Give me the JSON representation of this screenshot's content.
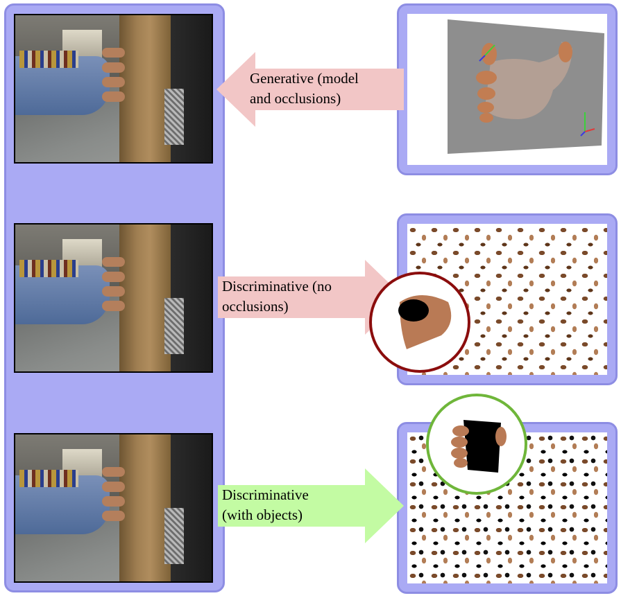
{
  "colors": {
    "panel_fill": "#aaaaf4",
    "panel_border": "#8d8de3",
    "arrow_pink": "#f2c6c6",
    "arrow_green": "#c3fba3",
    "circle_red": "#8b0d0d",
    "circle_green": "#6fb63a"
  },
  "arrows": [
    {
      "line1": "Generative (model",
      "line2": "and occlusions)",
      "direction": "left",
      "color": "pink"
    },
    {
      "line1": "Discriminative (no",
      "line2": "occlusions)",
      "direction": "right",
      "color": "pink"
    },
    {
      "line1": "Discriminative",
      "line2": "(with objects)",
      "direction": "right",
      "color": "green"
    }
  ],
  "images": {
    "left_photos": [
      "hand-behind-tube-photo",
      "hand-behind-tube-photo",
      "hand-behind-tube-photo"
    ],
    "top_right": "3d-hand-model-render",
    "middle_right": "synthetic-hand-dataset",
    "bottom_right": "synthetic-hand-object-dataset",
    "red_circle_content": "hand-with-black-occluder",
    "green_circle_content": "hand-holding-black-cup"
  }
}
